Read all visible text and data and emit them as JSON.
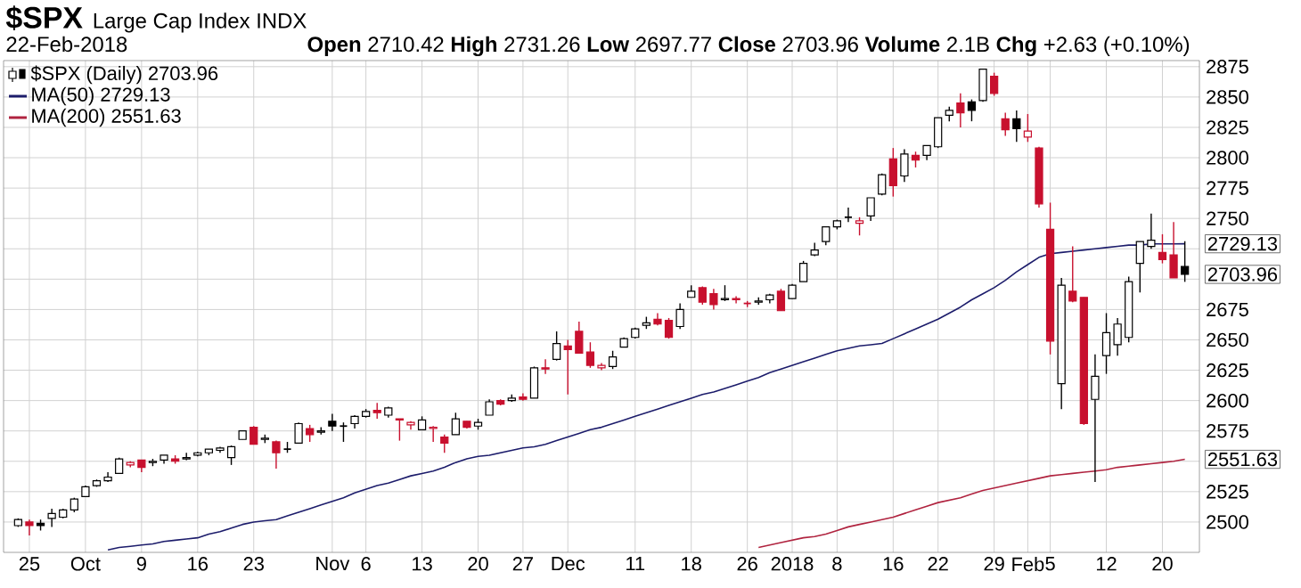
{
  "chart_data": {
    "type": "candlestick",
    "title": "$SPX",
    "subtitle": "Large Cap Index INDX",
    "categories": [
      null,
      "25",
      null,
      null,
      null,
      null,
      "Oct",
      null,
      null,
      null,
      null,
      "9",
      null,
      null,
      null,
      null,
      "16",
      null,
      null,
      null,
      null,
      "23",
      null,
      null,
      null,
      null,
      null,
      null,
      "Nov",
      null,
      null,
      "6",
      null,
      null,
      null,
      null,
      "13",
      null,
      null,
      null,
      null,
      "20",
      null,
      null,
      null,
      "27",
      null,
      null,
      null,
      "Dec",
      null,
      null,
      null,
      null,
      null,
      "11",
      null,
      null,
      null,
      null,
      "18",
      null,
      null,
      null,
      null,
      "26",
      null,
      null,
      null,
      "2018",
      null,
      null,
      null,
      "8",
      null,
      null,
      null,
      null,
      "16",
      null,
      null,
      null,
      "22",
      null,
      null,
      null,
      null,
      "29",
      null,
      null,
      "Feb",
      null,
      "5",
      null,
      null,
      null,
      null,
      "12",
      null,
      null,
      null,
      null,
      "20",
      null,
      null
    ],
    "series": [
      {
        "name": "$SPX (Daily) 2703.96",
        "type": "candlestick",
        "ohlc": [
          [
            2497,
            2503,
            2496,
            2502
          ],
          [
            2500,
            2502,
            2489,
            2497
          ],
          [
            2499,
            2502,
            2493,
            2497
          ],
          [
            2503,
            2511,
            2496,
            2507
          ],
          [
            2504,
            2511,
            2503,
            2510
          ],
          [
            2510,
            2520,
            2508,
            2519
          ],
          [
            2521,
            2530,
            2521,
            2529
          ],
          [
            2530,
            2535,
            2529,
            2534
          ],
          [
            2534,
            2541,
            2533,
            2537
          ],
          [
            2540,
            2553,
            2540,
            2552
          ],
          [
            2547,
            2550,
            2545,
            2549
          ],
          [
            2551,
            2551,
            2541,
            2545
          ],
          [
            2549,
            2552,
            2546,
            2550
          ],
          [
            2551,
            2555,
            2548,
            2555
          ],
          [
            2552,
            2555,
            2548,
            2550
          ],
          [
            2552,
            2557,
            2551,
            2553
          ],
          [
            2555,
            2558,
            2554,
            2557
          ],
          [
            2557,
            2560,
            2555,
            2560
          ],
          [
            2559,
            2562,
            2557,
            2561
          ],
          [
            2553,
            2563,
            2547,
            2562
          ],
          [
            2568,
            2575,
            2568,
            2575
          ],
          [
            2578,
            2579,
            2564,
            2564
          ],
          [
            2568,
            2572,
            2565,
            2569
          ],
          [
            2566,
            2567,
            2544,
            2557
          ],
          [
            2560,
            2566,
            2557,
            2560
          ],
          [
            2565,
            2582,
            2565,
            2581
          ],
          [
            2577,
            2580,
            2566,
            2572
          ],
          [
            2574,
            2578,
            2572,
            2575
          ],
          [
            2583,
            2589,
            2575,
            2579
          ],
          [
            2579,
            2582,
            2566,
            2579
          ],
          [
            2581,
            2588,
            2577,
            2587
          ],
          [
            2587,
            2593,
            2586,
            2591
          ],
          [
            2592,
            2598,
            2585,
            2590
          ],
          [
            2588,
            2595,
            2586,
            2594
          ],
          [
            2585,
            2585,
            2567,
            2584
          ],
          [
            2580,
            2583,
            2576,
            2582
          ],
          [
            2576,
            2587,
            2576,
            2584
          ],
          [
            2577,
            2579,
            2566,
            2578
          ],
          [
            2570,
            2572,
            2557,
            2565
          ],
          [
            2572,
            2590,
            2572,
            2585
          ],
          [
            2583,
            2583,
            2577,
            2578
          ],
          [
            2579,
            2585,
            2576,
            2582
          ],
          [
            2588,
            2601,
            2588,
            2599
          ],
          [
            2600,
            2601,
            2596,
            2597
          ],
          [
            2600,
            2605,
            2599,
            2602
          ],
          [
            2603,
            2606,
            2600,
            2601
          ],
          [
            2602,
            2628,
            2602,
            2627
          ],
          [
            2627,
            2634,
            2622,
            2626
          ],
          [
            2634,
            2657,
            2633,
            2647
          ],
          [
            2645,
            2650,
            2605,
            2642
          ],
          [
            2657,
            2665,
            2639,
            2639
          ],
          [
            2640,
            2648,
            2627,
            2629
          ],
          [
            2627,
            2631,
            2625,
            2629
          ],
          [
            2628,
            2641,
            2626,
            2636
          ],
          [
            2644,
            2652,
            2644,
            2651
          ],
          [
            2652,
            2660,
            2651,
            2659
          ],
          [
            2662,
            2669,
            2659,
            2664
          ],
          [
            2667,
            2672,
            2662,
            2663
          ],
          [
            2666,
            2668,
            2651,
            2652
          ],
          [
            2661,
            2680,
            2659,
            2675
          ],
          [
            2685,
            2695,
            2685,
            2690
          ],
          [
            2693,
            2694,
            2679,
            2681
          ],
          [
            2688,
            2692,
            2675,
            2679
          ],
          [
            2683,
            2695,
            2682,
            2684
          ],
          [
            2684,
            2686,
            2680,
            2683
          ],
          [
            2680,
            2682,
            2677,
            2680
          ],
          [
            2681,
            2685,
            2679,
            2682
          ],
          [
            2683,
            2688,
            2680,
            2687
          ],
          [
            2690,
            2692,
            2674,
            2674
          ],
          [
            2684,
            2696,
            2684,
            2695
          ],
          [
            2698,
            2715,
            2698,
            2713
          ],
          [
            2720,
            2730,
            2719,
            2724
          ],
          [
            2731,
            2743,
            2728,
            2743
          ],
          [
            2743,
            2749,
            2741,
            2748
          ],
          [
            2751,
            2759,
            2747,
            2751
          ],
          [
            2746,
            2751,
            2736,
            2748
          ],
          [
            2752,
            2767,
            2748,
            2767
          ],
          [
            2770,
            2787,
            2769,
            2786
          ],
          [
            2799,
            2808,
            2768,
            2777
          ],
          [
            2785,
            2807,
            2780,
            2803
          ],
          [
            2802,
            2805,
            2792,
            2798
          ],
          [
            2802,
            2810,
            2798,
            2810
          ],
          [
            2809,
            2833,
            2808,
            2833
          ],
          [
            2835,
            2842,
            2830,
            2839
          ],
          [
            2845,
            2853,
            2825,
            2837
          ],
          [
            2846,
            2848,
            2830,
            2839
          ],
          [
            2847,
            2873,
            2846,
            2873
          ],
          [
            2867,
            2870,
            2851,
            2853
          ],
          [
            2832,
            2837,
            2818,
            2823
          ],
          [
            2832,
            2839,
            2813,
            2824
          ],
          [
            2817,
            2836,
            2813,
            2822
          ],
          [
            2808,
            2809,
            2759,
            2762
          ],
          [
            2741,
            2763,
            2638,
            2649
          ],
          [
            2614,
            2701,
            2593,
            2695
          ],
          [
            2690,
            2727,
            2681,
            2682
          ],
          [
            2685,
            2685,
            2580,
            2581
          ],
          [
            2601,
            2638,
            2533,
            2620
          ],
          [
            2637,
            2672,
            2622,
            2656
          ],
          [
            2646,
            2668,
            2637,
            2663
          ],
          [
            2652,
            2702,
            2648,
            2698
          ],
          [
            2713,
            2731,
            2689,
            2731
          ],
          [
            2727,
            2754,
            2725,
            2732
          ],
          [
            2722,
            2737,
            2713,
            2716
          ],
          [
            2720,
            2747,
            2701,
            2701
          ],
          [
            2710.42,
            2731.26,
            2697.77,
            2703.96
          ]
        ],
        "colors": [
          "#000000",
          "#c8102e",
          "#000000",
          "#000000",
          "#000000",
          "#000000",
          "#000000",
          "#000000",
          "#000000",
          "#000000",
          "#c8102e",
          "#c8102e",
          "#000000",
          "#000000",
          "#c8102e",
          "#000000",
          "#000000",
          "#000000",
          "#000000",
          "#000000",
          "#000000",
          "#c8102e",
          "#000000",
          "#c8102e",
          "#000000",
          "#000000",
          "#c8102e",
          "#000000",
          "#000000",
          "#000000",
          "#000000",
          "#000000",
          "#c8102e",
          "#000000",
          "#c8102e",
          "#c8102e",
          "#000000",
          "#c8102e",
          "#c8102e",
          "#000000",
          "#c8102e",
          "#000000",
          "#000000",
          "#c8102e",
          "#000000",
          "#c8102e",
          "#000000",
          "#c8102e",
          "#000000",
          "#c8102e",
          "#c8102e",
          "#c8102e",
          "#c8102e",
          "#000000",
          "#000000",
          "#000000",
          "#000000",
          "#c8102e",
          "#c8102e",
          "#000000",
          "#000000",
          "#c8102e",
          "#c8102e",
          "#000000",
          "#c8102e",
          "#c8102e",
          "#000000",
          "#000000",
          "#c8102e",
          "#000000",
          "#000000",
          "#000000",
          "#000000",
          "#000000",
          "#000000",
          "#c8102e",
          "#000000",
          "#000000",
          "#c8102e",
          "#000000",
          "#c8102e",
          "#000000",
          "#000000",
          "#000000",
          "#c8102e",
          "#000000",
          "#000000",
          "#c8102e",
          "#c8102e",
          "#000000",
          "#c8102e",
          "#c8102e",
          "#c8102e",
          "#000000",
          "#c8102e",
          "#c8102e",
          "#000000",
          "#000000",
          "#000000",
          "#000000",
          "#000000",
          "#000000",
          "#c8102e",
          "#c8102e",
          "#000000"
        ],
        "value_labels": [
          null,
          null,
          null,
          null,
          null,
          null,
          null,
          null,
          null,
          null,
          null,
          null,
          null,
          null,
          null,
          null,
          null,
          null,
          null,
          null,
          null,
          null,
          null,
          null,
          null,
          null,
          null,
          null,
          null,
          null,
          null,
          null,
          null,
          null,
          null,
          null,
          null,
          null,
          null,
          null,
          null,
          null,
          null,
          null,
          null,
          null,
          null,
          null,
          null,
          null,
          null,
          null,
          null,
          null,
          null,
          null,
          null,
          null,
          null,
          null,
          null,
          null,
          null,
          null,
          null,
          null,
          null,
          null,
          null,
          null,
          null,
          null,
          null,
          null,
          null,
          null,
          null,
          null,
          null,
          null,
          null,
          null,
          null,
          null,
          null,
          null,
          null,
          null,
          null,
          null,
          null,
          null,
          null,
          null,
          null,
          null,
          null,
          null,
          null,
          null,
          null,
          null,
          null,
          null,
          "2703.96"
        ]
      },
      {
        "name": "MA(50) 2729.13",
        "type": "line",
        "color": "#1c1c6b",
        "values": [
          null,
          null,
          null,
          null,
          null,
          null,
          null,
          null,
          2477,
          2479,
          2480,
          2481,
          2482,
          2484,
          2485,
          2486,
          2487,
          2490,
          2492,
          2495,
          2498,
          2500,
          2501,
          2502,
          2505,
          2508,
          2511,
          2514,
          2517,
          2520,
          2524,
          2527,
          2530,
          2532,
          2535,
          2538,
          2540,
          2542,
          2545,
          2549,
          2552,
          2554,
          2555,
          2557,
          2559,
          2561,
          2562,
          2564,
          2567,
          2570,
          2573,
          2576,
          2578,
          2581,
          2584,
          2587,
          2590,
          2593,
          2596,
          2599,
          2602,
          2605,
          2607,
          2610,
          2613,
          2616,
          2619,
          2623,
          2626,
          2629,
          2632,
          2635,
          2638,
          2641,
          2643,
          2645,
          2646,
          2647,
          2651,
          2655,
          2659,
          2663,
          2667,
          2672,
          2677,
          2683,
          2688,
          2693,
          2699,
          2706,
          2712,
          2718,
          2721,
          2722,
          2723,
          2724,
          2725,
          2726,
          2727,
          2728,
          2728,
          2729,
          2729,
          2729,
          2729.13
        ],
        "value_labels": [
          null,
          null,
          null,
          null,
          null,
          null,
          null,
          null,
          null,
          null,
          null,
          null,
          null,
          null,
          null,
          null,
          null,
          null,
          null,
          null,
          null,
          null,
          null,
          null,
          null,
          null,
          null,
          null,
          null,
          null,
          null,
          null,
          null,
          null,
          null,
          null,
          null,
          null,
          null,
          null,
          null,
          null,
          null,
          null,
          null,
          null,
          null,
          null,
          null,
          null,
          null,
          null,
          null,
          null,
          null,
          null,
          null,
          null,
          null,
          null,
          null,
          null,
          null,
          null,
          null,
          null,
          null,
          null,
          null,
          null,
          null,
          null,
          null,
          null,
          null,
          null,
          null,
          null,
          null,
          null,
          null,
          null,
          null,
          null,
          null,
          null,
          null,
          null,
          null,
          null,
          null,
          null,
          null,
          null,
          null,
          null,
          null,
          null,
          null,
          null,
          null,
          null,
          null,
          null,
          "2729.13"
        ]
      },
      {
        "name": "MA(200) 2551.63",
        "type": "line",
        "color": "#b0233f",
        "values": [
          null,
          null,
          null,
          null,
          null,
          null,
          null,
          null,
          null,
          null,
          null,
          null,
          null,
          null,
          null,
          null,
          null,
          null,
          null,
          null,
          null,
          null,
          null,
          null,
          null,
          null,
          null,
          null,
          null,
          null,
          null,
          null,
          null,
          null,
          null,
          null,
          null,
          null,
          null,
          null,
          null,
          null,
          null,
          null,
          null,
          null,
          null,
          null,
          null,
          null,
          null,
          null,
          null,
          null,
          null,
          null,
          null,
          null,
          null,
          null,
          null,
          null,
          null,
          null,
          null,
          null,
          2479,
          2481,
          2483,
          2485,
          2487,
          2488,
          2490,
          2493,
          2496,
          2498,
          2500,
          2502,
          2504,
          2507,
          2510,
          2513,
          2516,
          2518,
          2520,
          2523,
          2526,
          2528,
          2530,
          2532,
          2534,
          2536,
          2538,
          2539,
          2540,
          2541,
          2542,
          2543,
          2545,
          2546,
          2547,
          2548,
          2549,
          2550,
          2551.63
        ],
        "value_labels": [
          null,
          null,
          null,
          null,
          null,
          null,
          null,
          null,
          null,
          null,
          null,
          null,
          null,
          null,
          null,
          null,
          null,
          null,
          null,
          null,
          null,
          null,
          null,
          null,
          null,
          null,
          null,
          null,
          null,
          null,
          null,
          null,
          null,
          null,
          null,
          null,
          null,
          null,
          null,
          null,
          null,
          null,
          null,
          null,
          null,
          null,
          null,
          null,
          null,
          null,
          null,
          null,
          null,
          null,
          null,
          null,
          null,
          null,
          null,
          null,
          null,
          null,
          null,
          null,
          null,
          null,
          null,
          null,
          null,
          null,
          null,
          null,
          null,
          null,
          null,
          null,
          null,
          null,
          null,
          null,
          null,
          null,
          null,
          null,
          null,
          null,
          null,
          null,
          null,
          null,
          null,
          null,
          null,
          null,
          null,
          null,
          null,
          null,
          null,
          null,
          null,
          null,
          null,
          null,
          "2551.63"
        ]
      }
    ],
    "ylim": [
      2475,
      2880
    ],
    "yticks": [
      2500,
      2525,
      {
        "value": 2550,
        "label": null
      },
      2575,
      2600,
      2625,
      2650,
      2675,
      {
        "value": 2700,
        "label": null
      },
      {
        "value": 2725,
        "label": null
      },
      2750,
      2775,
      2800,
      2825,
      2850,
      2875
    ],
    "grid": true,
    "legend": "top left",
    "annotations": [
      "22-Feb-2018",
      "**Open** 2710.42 **High** 2731.26 **Low** 2697.77 **Close** 2703.96 **Volume** 2.1B **Chg** +2.63 (+0.10%)"
    ]
  }
}
